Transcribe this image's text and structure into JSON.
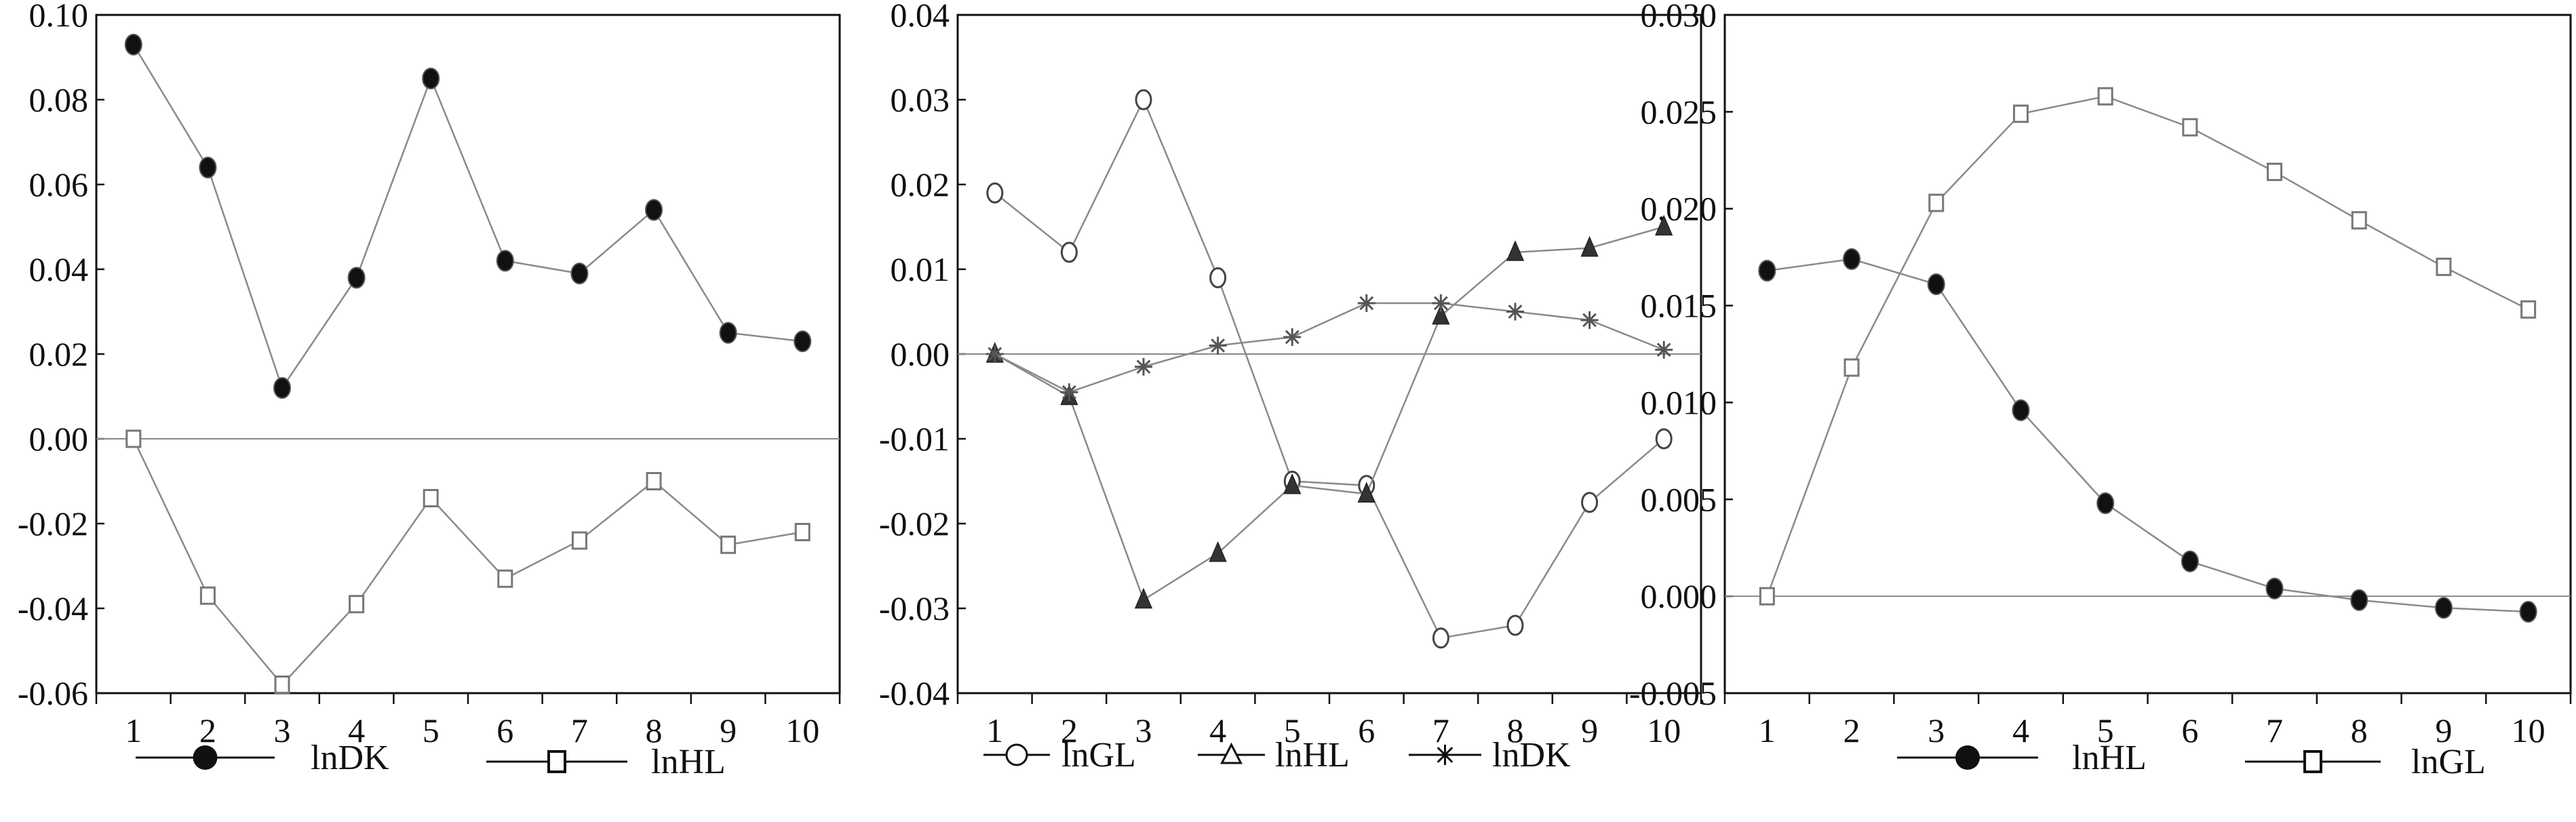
{
  "chart_data": [
    {
      "type": "line",
      "x": [
        1,
        2,
        3,
        4,
        5,
        6,
        7,
        8,
        9,
        10
      ],
      "ylim": [
        -0.06,
        0.1
      ],
      "yticks": [
        "0.10",
        "0.08",
        "0.06",
        "0.04",
        "0.02",
        "0.00",
        "-0.02",
        "-0.04",
        "-0.06"
      ],
      "ytick_values": [
        0.1,
        0.08,
        0.06,
        0.04,
        0.02,
        0.0,
        -0.02,
        -0.04,
        -0.06
      ],
      "xticks": [
        "1",
        "2",
        "3",
        "4",
        "5",
        "6",
        "7",
        "8",
        "9",
        "10"
      ],
      "zero_line": true,
      "legend_position": "bottom",
      "series": [
        {
          "name": "lnDK",
          "marker": "filled-circle",
          "values": [
            0.093,
            0.064,
            0.012,
            0.038,
            0.085,
            0.042,
            0.039,
            0.054,
            0.025,
            0.023
          ]
        },
        {
          "name": "lnHL",
          "marker": "open-square",
          "values": [
            0.0,
            -0.037,
            -0.058,
            -0.039,
            -0.014,
            -0.033,
            -0.024,
            -0.01,
            -0.025,
            -0.022
          ]
        }
      ]
    },
    {
      "type": "line",
      "x": [
        1,
        2,
        3,
        4,
        5,
        6,
        7,
        8,
        9,
        10
      ],
      "ylim": [
        -0.04,
        0.04
      ],
      "yticks": [
        "0.04",
        "0.03",
        "0.02",
        "0.01",
        "0.00",
        "-0.01",
        "-0.02",
        "-0.03",
        "-0.04"
      ],
      "ytick_values": [
        0.04,
        0.03,
        0.02,
        0.01,
        0.0,
        -0.01,
        -0.02,
        -0.03,
        -0.04
      ],
      "xticks": [
        "1",
        "2",
        "3",
        "4",
        "5",
        "6",
        "7",
        "8",
        "9",
        "10"
      ],
      "zero_line": true,
      "legend_position": "bottom",
      "series": [
        {
          "name": "lnGL",
          "marker": "open-circle",
          "values": [
            0.019,
            0.012,
            0.03,
            0.009,
            -0.015,
            -0.0155,
            -0.0335,
            -0.032,
            -0.0175,
            -0.01
          ]
        },
        {
          "name": "lnHL",
          "marker": "filled-triangle",
          "values": [
            0.0,
            -0.005,
            -0.029,
            -0.0235,
            -0.0155,
            -0.0165,
            0.0045,
            0.012,
            0.0125,
            0.015
          ]
        },
        {
          "name": "lnDK",
          "marker": "star",
          "values": [
            0.0,
            -0.0045,
            -0.0015,
            0.001,
            0.002,
            0.006,
            0.006,
            0.005,
            0.004,
            0.0005
          ]
        }
      ]
    },
    {
      "type": "line",
      "x": [
        1,
        2,
        3,
        4,
        5,
        6,
        7,
        8,
        9,
        10
      ],
      "ylim": [
        -0.005,
        0.03
      ],
      "yticks": [
        "0.030",
        "0.025",
        "0.020",
        "0.015",
        "0.010",
        "0.005",
        "0.000",
        "-0.005"
      ],
      "ytick_values": [
        0.03,
        0.025,
        0.02,
        0.015,
        0.01,
        0.005,
        0.0,
        -0.005
      ],
      "xticks": [
        "1",
        "2",
        "3",
        "4",
        "5",
        "6",
        "7",
        "8",
        "9",
        "10"
      ],
      "zero_line": true,
      "legend_position": "bottom",
      "series": [
        {
          "name": "lnHL",
          "marker": "filled-circle",
          "values": [
            0.0168,
            0.0174,
            0.0161,
            0.0096,
            0.0048,
            0.0018,
            0.0004,
            -0.0002,
            -0.0006,
            -0.0008
          ]
        },
        {
          "name": "lnGL",
          "marker": "open-square",
          "values": [
            0.0,
            0.0118,
            0.0203,
            0.0249,
            0.0258,
            0.0242,
            0.0219,
            0.0194,
            0.017,
            0.0148
          ]
        }
      ]
    }
  ]
}
